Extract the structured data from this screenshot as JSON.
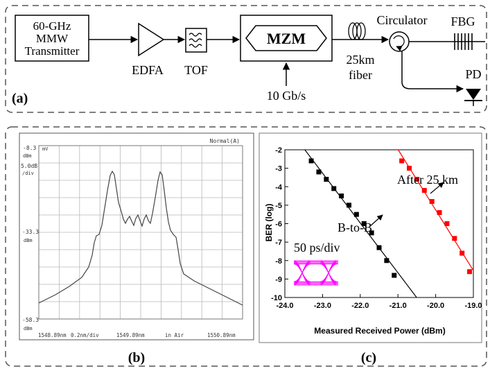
{
  "panel_a": {
    "label": "(a)",
    "transmitter": [
      "60-GHz",
      "MMW",
      "Transmitter"
    ],
    "edfa": "EDFA",
    "tof": "TOF",
    "mzm": "MZM",
    "mod_signal": "10 Gb/s",
    "fiber": [
      "25km",
      "fiber"
    ],
    "circulator": "Circulator",
    "fbg": "FBG",
    "pd": "PD"
  },
  "panel_b": {
    "label": "(b)",
    "mode": "Normal(A)",
    "ref_level": "-8.3",
    "ref_unit": "dBm",
    "ref_marker": "mV",
    "scale": "5.0dB",
    "scale_unit": "/div",
    "mid_level": "-33.3",
    "mid_unit": "dBm",
    "low_level": "-58.3",
    "low_unit": "dBm",
    "x_start": "1548.89nm",
    "x_span": "0.2nm/div",
    "x_center": "1549.89nm",
    "x_medium": "in Air",
    "x_end": "1550.89nm"
  },
  "panel_c": {
    "label": "(c)",
    "eye_label": "50 ps/div",
    "b2b_label": "B-to-B",
    "after_label": "After 25 km"
  },
  "colors": {
    "b2b": "#000000",
    "after": "#ff0000",
    "eye": "#ff00ff"
  },
  "chart_data": {
    "type": "scatter",
    "xlabel": "Measured Received Power (dBm)",
    "ylabel": "BER (log)",
    "xlim": [
      -24.0,
      -19.0
    ],
    "ylim": [
      -10,
      -2
    ],
    "x_ticks": [
      "-24.0",
      "-23.0",
      "-22.0",
      "-21.0",
      "-20.0",
      "-19.0"
    ],
    "y_ticks": [
      "-2",
      "-3",
      "-4",
      "-5",
      "-6",
      "-7",
      "-8",
      "-9",
      "-10"
    ],
    "series": [
      {
        "name": "B-to-B",
        "x": [
          -23.3,
          -23.1,
          -22.9,
          -22.7,
          -22.5,
          -22.3,
          -22.1,
          -21.9,
          -21.7,
          -21.5,
          -21.3,
          -21.1
        ],
        "y": [
          -2.6,
          -3.2,
          -3.6,
          -4.1,
          -4.5,
          -5.0,
          -5.5,
          -6.0,
          -6.5,
          -7.3,
          -8.0,
          -8.8
        ]
      },
      {
        "name": "After 25 km",
        "x": [
          -20.9,
          -20.7,
          -20.5,
          -20.3,
          -20.1,
          -19.9,
          -19.7,
          -19.5,
          -19.3,
          -19.1
        ],
        "y": [
          -2.6,
          -3.0,
          -3.6,
          -4.2,
          -4.8,
          -5.4,
          -6.0,
          -6.8,
          -7.6,
          -8.6
        ]
      }
    ]
  }
}
